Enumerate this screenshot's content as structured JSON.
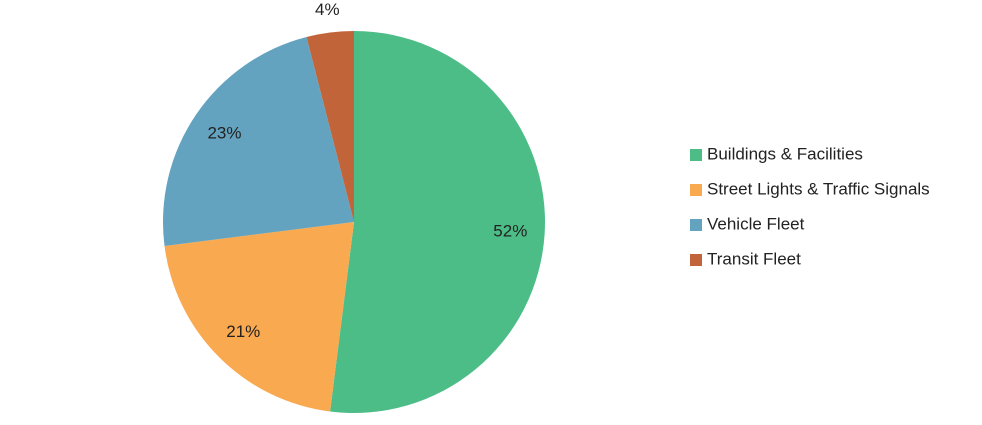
{
  "chart_data": {
    "type": "pie",
    "categories": [
      "Buildings & Facilities",
      "Street Lights & Traffic Signals",
      "Vehicle Fleet",
      "Transit Fleet"
    ],
    "values": [
      52,
      21,
      23,
      4
    ],
    "value_labels": [
      "52%",
      "21%",
      "23%",
      "4%"
    ],
    "colors": [
      "#4dbd88",
      "#f9a94f",
      "#64a3bf",
      "#c2643a"
    ],
    "legend": "right"
  }
}
